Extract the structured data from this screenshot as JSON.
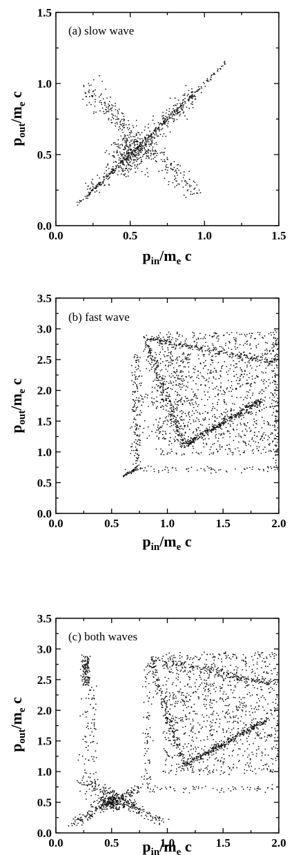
{
  "chart_data": [
    {
      "type": "scatter",
      "title": "(a) slow wave",
      "xlabel": "p_in/m_e c",
      "ylabel": "p_out/m_e c",
      "xlim": [
        0.0,
        1.5
      ],
      "ylim": [
        0.0,
        1.5
      ],
      "xticks": [
        "0.0",
        "0.5",
        "1.0",
        "1.5"
      ],
      "yticks": [
        "0.0",
        "0.5",
        "1.0",
        "1.5"
      ],
      "grid": false,
      "legend": "none",
      "features": {
        "diagonal_line": {
          "x_range": [
            0.15,
            1.15
          ]
        },
        "anti_diagonal_band": {
          "from": [
            0.22,
            0.95
          ],
          "to": [
            0.95,
            0.22
          ]
        },
        "central_cluster": {
          "center": [
            0.5,
            0.5
          ]
        }
      }
    },
    {
      "type": "scatter",
      "title": "(b) fast wave",
      "xlabel": "p_in/m_e c",
      "ylabel": "p_out/m_e c",
      "xlim": [
        0.0,
        2.0
      ],
      "ylim": [
        0.0,
        3.5
      ],
      "xticks": [
        "0.0",
        "0.5",
        "1.0",
        "1.5",
        "2.0"
      ],
      "yticks": [
        "0.0",
        "0.5",
        "1.0",
        "1.5",
        "2.0",
        "2.5",
        "3.0",
        "3.5"
      ],
      "grid": false,
      "legend": "none",
      "features": {
        "entry_line": {
          "from": [
            0.6,
            0.6
          ],
          "to": [
            0.72,
            0.72
          ]
        },
        "left_vertical_band": {
          "x": 0.72,
          "y_range": [
            0.7,
            2.6
          ]
        },
        "upper_curve": {
          "from": [
            0.8,
            2.85
          ],
          "to": [
            1.9,
            2.5
          ]
        },
        "descending_curve": {
          "from": [
            0.8,
            2.8
          ],
          "to": [
            1.15,
            1.1
          ]
        },
        "diagonal_line": {
          "from": [
            1.15,
            1.1
          ],
          "to": [
            1.85,
            1.85
          ]
        },
        "scattered_region": {
          "x_range": [
            0.75,
            2.0
          ],
          "y_range": [
            0.7,
            3.0
          ]
        }
      }
    },
    {
      "type": "scatter",
      "title": "(c) both waves",
      "xlabel": "p_in/m_e c",
      "ylabel": "p_out/m_e c",
      "xlim": [
        0.0,
        2.0
      ],
      "ylim": [
        0.0,
        3.5
      ],
      "xticks": [
        "0.0",
        "0.5",
        "1.0",
        "1.5",
        "2.0"
      ],
      "yticks": [
        "0.0",
        "0.5",
        "1.0",
        "1.5",
        "2.0",
        "2.5",
        "3.0",
        "3.5"
      ],
      "grid": false,
      "legend": "none",
      "features": {
        "x_cluster": {
          "center": [
            0.5,
            0.5
          ]
        },
        "left_vertical_band": {
          "x": 0.25,
          "y_range": [
            0.3,
            2.9
          ]
        },
        "upper_curve": {
          "from": [
            0.85,
            2.8
          ],
          "to": [
            1.95,
            2.4
          ]
        },
        "descending_curve": {
          "from": [
            0.85,
            2.8
          ],
          "to": [
            1.15,
            1.1
          ]
        },
        "diagonal_line": {
          "from": [
            1.15,
            1.1
          ],
          "to": [
            1.9,
            1.85
          ]
        },
        "scattered_region": {
          "x_range": [
            0.8,
            2.0
          ],
          "y_range": [
            0.7,
            3.0
          ]
        }
      }
    }
  ]
}
